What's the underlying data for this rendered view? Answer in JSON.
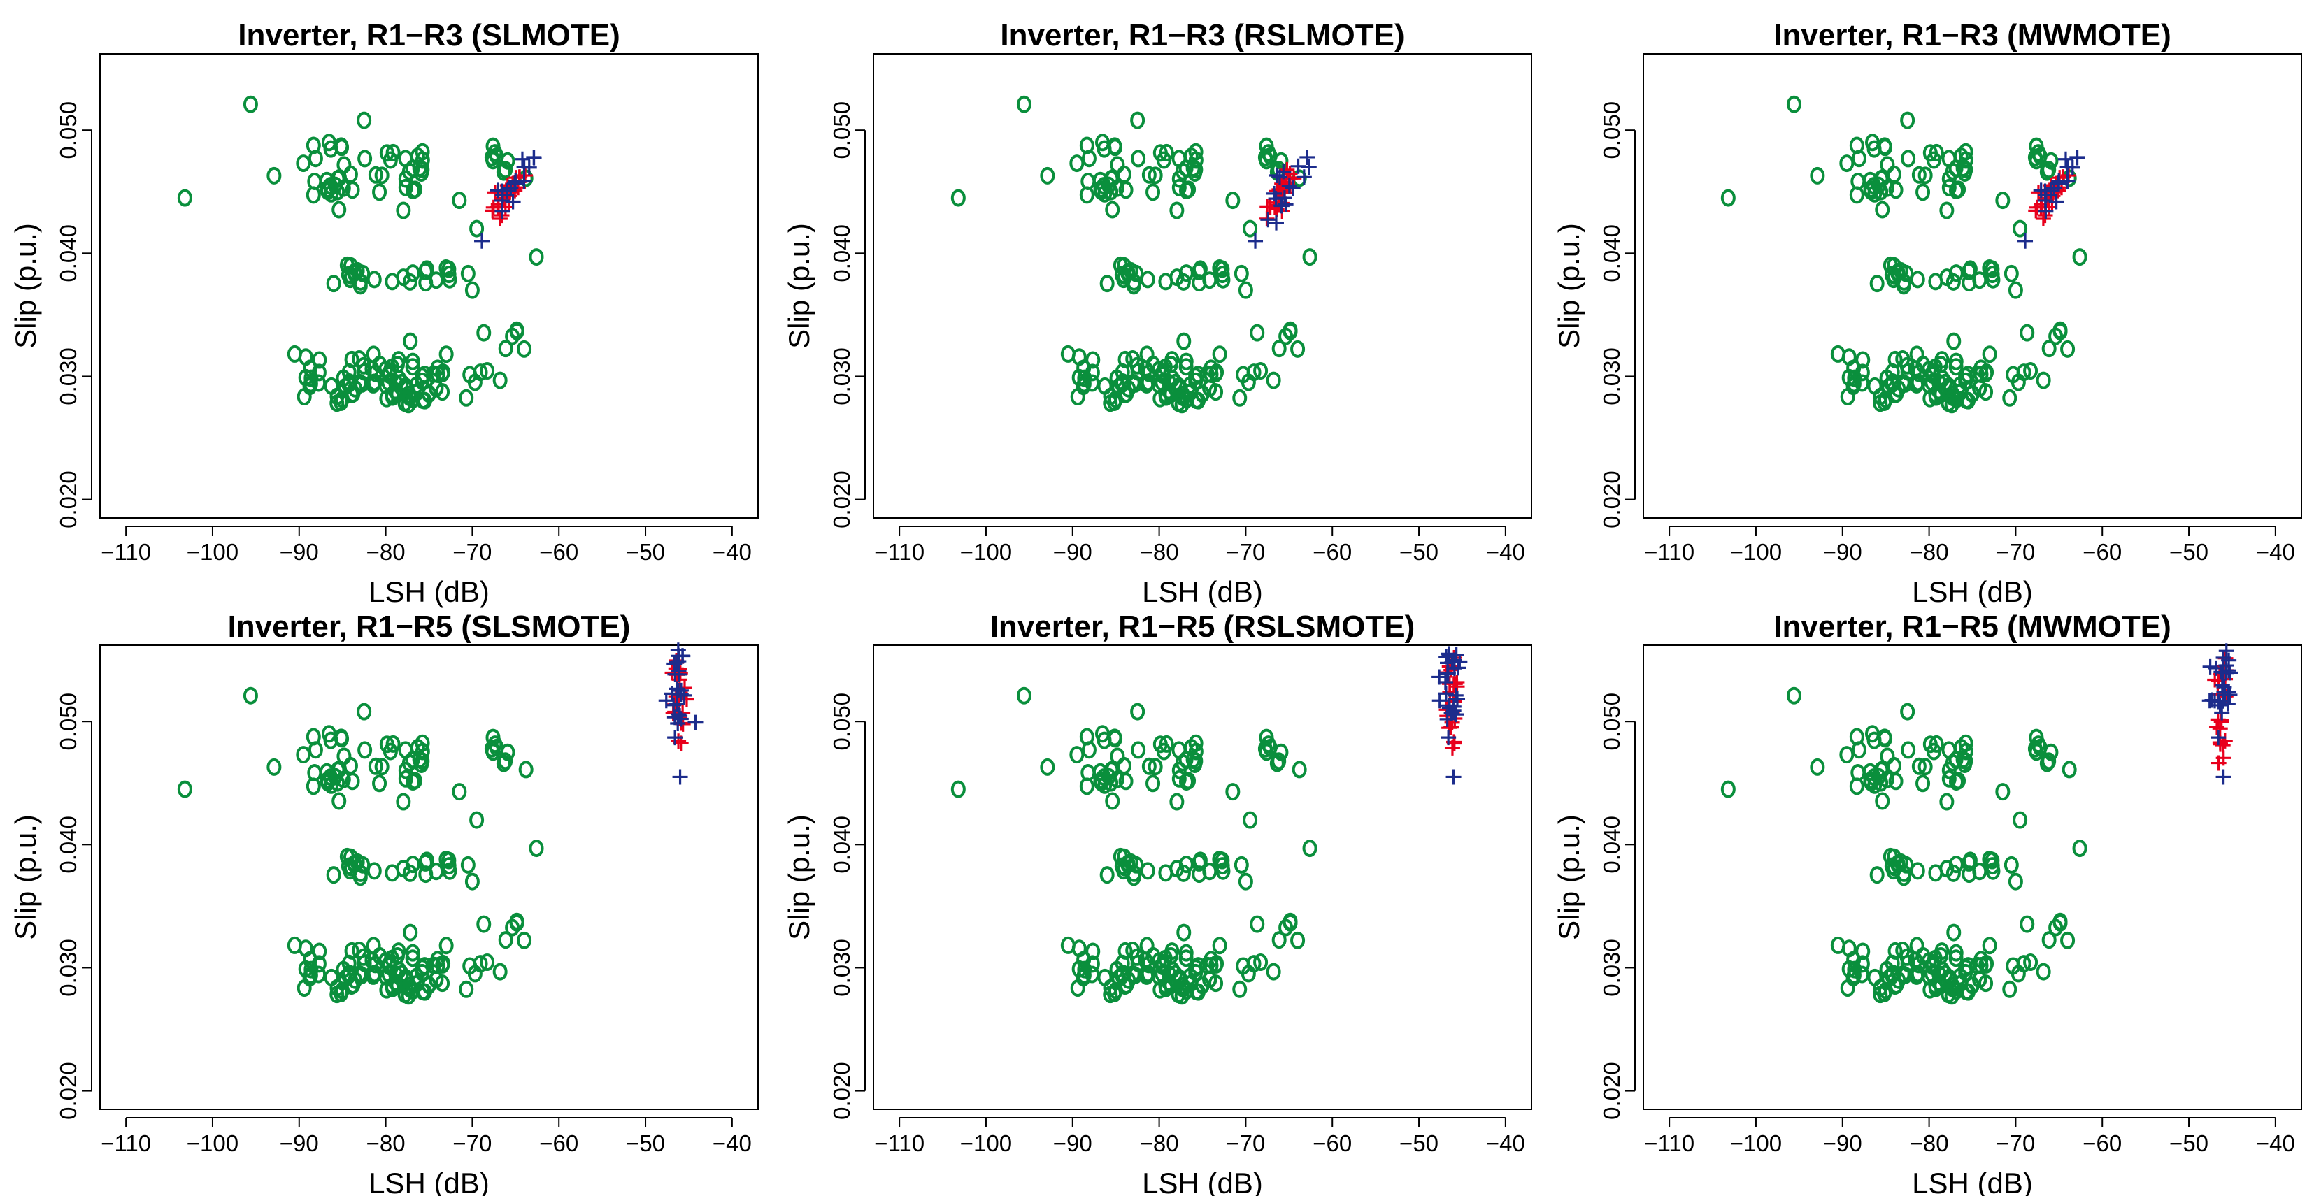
{
  "figure": {
    "colors": {
      "circle": "#0a8f3c",
      "plus_red": "#e8001c",
      "plus_blue": "#1c2c8c"
    },
    "markers": {
      "circle": "o",
      "red_plus": "+",
      "blue_plus": "+"
    }
  },
  "chart_data": [
    {
      "type": "scatter",
      "title": "Inverter, R1−R3 (SLMOTE)",
      "xlabel": "LSH (dB)",
      "ylabel": "Slip (p.u.)",
      "xlim": [
        -113,
        -37
      ],
      "ylim": [
        0.0185,
        0.0562
      ],
      "xticks": [
        -110,
        -100,
        -90,
        -80,
        -70,
        -60,
        -50,
        -40
      ],
      "xtick_labels": [
        "−110",
        "−100",
        "−90",
        "−80",
        "−70",
        "−60",
        "−50",
        "−40"
      ],
      "yticks": [
        0.02,
        0.03,
        0.04,
        0.05
      ],
      "ytick_labels": [
        "0.020",
        "0.030",
        "0.040",
        "0.050"
      ],
      "variant": "r3",
      "method": "slmote"
    },
    {
      "type": "scatter",
      "title": "Inverter, R1−R3 (RSLMOTE)",
      "xlabel": "LSH (dB)",
      "ylabel": "Slip (p.u.)",
      "xlim": [
        -113,
        -37
      ],
      "ylim": [
        0.0185,
        0.0562
      ],
      "xticks": [
        -110,
        -100,
        -90,
        -80,
        -70,
        -60,
        -50,
        -40
      ],
      "xtick_labels": [
        "−110",
        "−100",
        "−90",
        "−80",
        "−70",
        "−60",
        "−50",
        "−40"
      ],
      "yticks": [
        0.02,
        0.03,
        0.04,
        0.05
      ],
      "ytick_labels": [
        "0.020",
        "0.030",
        "0.040",
        "0.050"
      ],
      "variant": "r3",
      "method": "rslmote"
    },
    {
      "type": "scatter",
      "title": "Inverter, R1−R3 (MWMOTE)",
      "xlabel": "LSH (dB)",
      "ylabel": "Slip (p.u.)",
      "xlim": [
        -113,
        -37
      ],
      "ylim": [
        0.0185,
        0.0562
      ],
      "xticks": [
        -110,
        -100,
        -90,
        -80,
        -70,
        -60,
        -50,
        -40
      ],
      "xtick_labels": [
        "−110",
        "−100",
        "−90",
        "−80",
        "−70",
        "−60",
        "−50",
        "−40"
      ],
      "yticks": [
        0.02,
        0.03,
        0.04,
        0.05
      ],
      "ytick_labels": [
        "0.020",
        "0.030",
        "0.040",
        "0.050"
      ],
      "variant": "r3",
      "method": "mwmote"
    },
    {
      "type": "scatter",
      "title": "Inverter, R1−R5 (SLSMOTE)",
      "xlabel": "LSH (dB)",
      "ylabel": "Slip (p.u.)",
      "xlim": [
        -113,
        -37
      ],
      "ylim": [
        0.0185,
        0.0562
      ],
      "xticks": [
        -110,
        -100,
        -90,
        -80,
        -70,
        -60,
        -50,
        -40
      ],
      "xtick_labels": [
        "−110",
        "−100",
        "−90",
        "−80",
        "−70",
        "−60",
        "−50",
        "−40"
      ],
      "yticks": [
        0.02,
        0.03,
        0.04,
        0.05
      ],
      "ytick_labels": [
        "0.020",
        "0.030",
        "0.040",
        "0.050"
      ],
      "variant": "r5",
      "method": "slsmote"
    },
    {
      "type": "scatter",
      "title": "Inverter, R1−R5 (RSLSMOTE)",
      "xlabel": "LSH (dB)",
      "ylabel": "Slip (p.u.)",
      "xlim": [
        -113,
        -37
      ],
      "ylim": [
        0.0185,
        0.0562
      ],
      "xticks": [
        -110,
        -100,
        -90,
        -80,
        -70,
        -60,
        -50,
        -40
      ],
      "xtick_labels": [
        "−110",
        "−100",
        "−90",
        "−80",
        "−70",
        "−60",
        "−50",
        "−40"
      ],
      "yticks": [
        0.02,
        0.03,
        0.04,
        0.05
      ],
      "ytick_labels": [
        "0.020",
        "0.030",
        "0.040",
        "0.050"
      ],
      "variant": "r5",
      "method": "rslsmote"
    },
    {
      "type": "scatter",
      "title": "Inverter, R1−R5 (MWMOTE)",
      "xlabel": "LSH (dB)",
      "ylabel": "Slip (p.u.)",
      "xlim": [
        -113,
        -37
      ],
      "ylim": [
        0.0185,
        0.0562
      ],
      "xticks": [
        -110,
        -100,
        -90,
        -80,
        -70,
        -60,
        -50,
        -40
      ],
      "xtick_labels": [
        "−110",
        "−100",
        "−90",
        "−80",
        "−70",
        "−60",
        "−50",
        "−40"
      ],
      "yticks": [
        0.02,
        0.03,
        0.04,
        0.05
      ],
      "ytick_labels": [
        "0.020",
        "0.030",
        "0.040",
        "0.050"
      ],
      "variant": "r5",
      "method": "mwmote"
    }
  ]
}
